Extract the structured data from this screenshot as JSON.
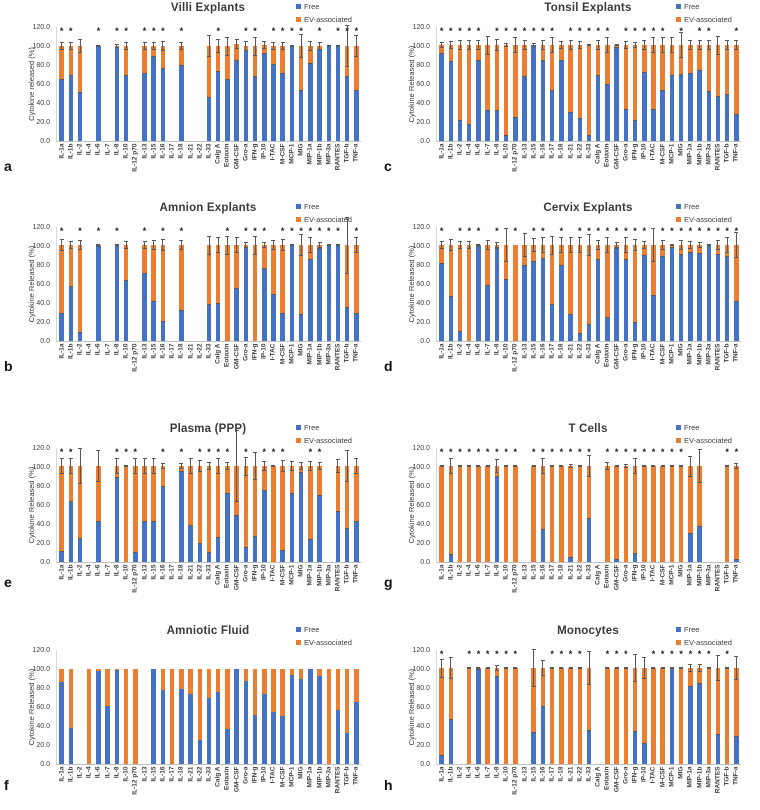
{
  "palette": {
    "free": "#4472C4",
    "ev": "#ED7D31",
    "error_bar": "#595959",
    "title_color": "#3b3b3b",
    "axis_text": "#404040"
  },
  "legend": {
    "free_label": "Free",
    "ev_label": "EV-associated"
  },
  "y_axis": {
    "ticks": [
      "120.0",
      "100.0",
      "80.0",
      "60.0",
      "40.0",
      "20.0",
      "0.0"
    ],
    "min": 0,
    "max": 120
  },
  "categories": [
    "IL-1a",
    "IL-1b",
    "IL-2",
    "IL-4",
    "IL-6",
    "IL-7",
    "IL-8",
    "IL-10",
    "IL-12 p70",
    "IL-13",
    "IL-15",
    "IL-16",
    "IL-17",
    "IL-18",
    "IL-21",
    "IL-22",
    "IL-33",
    "Calg A",
    "Eotaxin",
    "GM-CSF",
    "Gro-a",
    "IFN-g",
    "IP-10",
    "I-TAC",
    "M-CSF",
    "MCP-1",
    "MIG",
    "MIP-1a",
    "MIP-1b",
    "MIP-3a",
    "RANTES",
    "TGF-b",
    "TNF-a"
  ],
  "chart_data": [
    {
      "type": "bar",
      "panel_letter": "a",
      "title": "Villi Explants",
      "ylabel": "Cytokine released (%)",
      "series_note": "stacked: free (blue) bottom, ev-associated (orange) top; total = free+ev",
      "free": [
        65,
        70,
        52,
        0,
        100,
        0,
        99,
        69,
        0,
        72,
        90,
        77,
        0,
        80,
        0,
        0,
        46,
        74,
        65,
        85,
        96,
        68,
        93,
        81,
        72,
        100,
        54,
        82,
        97,
        100,
        100,
        68,
        54
      ],
      "total": [
        100,
        100,
        100,
        0,
        100,
        0,
        100,
        100,
        0,
        100,
        100,
        100,
        0,
        100,
        0,
        0,
        100,
        100,
        100,
        102,
        100,
        100,
        101,
        100,
        100,
        100,
        100,
        100,
        100,
        100,
        100,
        100,
        100
      ],
      "err": [
        4,
        4,
        7,
        0,
        1,
        0,
        2,
        4,
        0,
        4,
        4,
        5,
        0,
        4,
        0,
        0,
        12,
        7,
        10,
        5,
        5,
        10,
        4,
        4,
        4,
        1,
        13,
        5,
        4,
        1,
        1,
        22,
        12
      ],
      "asterisk": [
        1,
        1,
        0,
        0,
        1,
        0,
        1,
        1,
        0,
        1,
        1,
        1,
        0,
        1,
        0,
        0,
        0,
        1,
        0,
        0,
        1,
        1,
        0,
        1,
        1,
        1,
        1,
        0,
        1,
        0,
        1,
        1,
        1
      ]
    },
    {
      "type": "bar",
      "panel_letter": "b",
      "title": "Amnion Explants",
      "ylabel": "Cytokine Released (%)",
      "free": [
        29,
        58,
        10,
        0,
        100,
        0,
        101,
        64,
        0,
        72,
        42,
        21,
        0,
        33,
        0,
        0,
        39,
        40,
        0,
        56,
        99,
        0,
        77,
        49,
        29,
        101,
        28,
        86,
        98,
        101,
        101,
        36,
        30
      ],
      "total": [
        101,
        101,
        101,
        0,
        101,
        0,
        101,
        101,
        0,
        101,
        101,
        101,
        0,
        101,
        0,
        0,
        101,
        101,
        101,
        101,
        101,
        101,
        101,
        101,
        101,
        101,
        101,
        101,
        101,
        101,
        101,
        101,
        101
      ],
      "err": [
        6,
        4,
        5,
        0,
        1,
        0,
        1,
        4,
        0,
        4,
        5,
        6,
        0,
        5,
        0,
        0,
        10,
        8,
        10,
        8,
        3,
        10,
        3,
        5,
        6,
        1,
        12,
        8,
        3,
        1,
        1,
        30,
        8
      ],
      "asterisk": [
        1,
        0,
        1,
        0,
        1,
        0,
        1,
        0,
        0,
        1,
        0,
        1,
        0,
        1,
        0,
        0,
        0,
        0,
        1,
        0,
        1,
        1,
        1,
        0,
        1,
        1,
        1,
        1,
        1,
        1,
        1,
        0,
        1
      ]
    },
    {
      "type": "bar",
      "panel_letter": "c",
      "title": "Tonsil Explants",
      "ylabel": "Cytokine Released (%)",
      "free": [
        93,
        84,
        22,
        18,
        85,
        33,
        33,
        6,
        25,
        68,
        101,
        85,
        54,
        85,
        31,
        24,
        6,
        70,
        60,
        99,
        34,
        22,
        73,
        34,
        54,
        70,
        71,
        72,
        75,
        53,
        47,
        50,
        28
      ],
      "total": [
        101,
        101,
        101,
        101,
        101,
        101,
        101,
        101,
        101,
        101,
        101,
        101,
        101,
        101,
        101,
        101,
        101,
        101,
        101,
        101,
        101,
        101,
        101,
        101,
        101,
        101,
        101,
        101,
        101,
        101,
        101,
        101,
        101
      ],
      "err": [
        3,
        4,
        5,
        5,
        5,
        10,
        6,
        2,
        8,
        5,
        2,
        5,
        8,
        4,
        5,
        4,
        1,
        5,
        8,
        1,
        4,
        3,
        5,
        8,
        8,
        8,
        14,
        5,
        5,
        5,
        10,
        5,
        5
      ],
      "asterisk": [
        1,
        1,
        1,
        1,
        1,
        0,
        1,
        1,
        1,
        1,
        1,
        1,
        1,
        0,
        1,
        1,
        1,
        1,
        1,
        0,
        1,
        1,
        1,
        1,
        1,
        0,
        1,
        0,
        1,
        1,
        0,
        0,
        1
      ]
    },
    {
      "type": "bar",
      "panel_letter": "d",
      "title": "Cervix Explants",
      "ylabel": "Cytokine Released (%)",
      "free": [
        82,
        47,
        11,
        0,
        100,
        59,
        98,
        65,
        0,
        80,
        84,
        87,
        39,
        80,
        28,
        8,
        18,
        86,
        25,
        98,
        86,
        20,
        91,
        48,
        89,
        99,
        92,
        94,
        93,
        101,
        92,
        89,
        42
      ],
      "total": [
        101,
        101,
        101,
        101,
        101,
        101,
        101,
        101,
        101,
        101,
        101,
        101,
        101,
        101,
        101,
        101,
        101,
        101,
        101,
        101,
        101,
        101,
        101,
        101,
        101,
        101,
        101,
        101,
        101,
        101,
        101,
        101,
        101
      ],
      "err": [
        4,
        6,
        4,
        4,
        1,
        5,
        3,
        18,
        0,
        13,
        7,
        8,
        10,
        8,
        8,
        8,
        12,
        5,
        8,
        3,
        8,
        6,
        4,
        18,
        5,
        1,
        5,
        4,
        3,
        1,
        5,
        8,
        14
      ],
      "asterisk": [
        1,
        0,
        1,
        1,
        1,
        0,
        1,
        0,
        1,
        0,
        1,
        1,
        0,
        1,
        0,
        1,
        1,
        1,
        1,
        1,
        1,
        1,
        1,
        0,
        1,
        1,
        1,
        1,
        1,
        1,
        1,
        1,
        1
      ]
    },
    {
      "type": "bar",
      "panel_letter": "e",
      "title": "Plasma (PPP)",
      "ylabel": "Cytokine Released (%)",
      "free": [
        12,
        64,
        25,
        0,
        43,
        0,
        90,
        0,
        11,
        43,
        43,
        80,
        0,
        96,
        39,
        20,
        11,
        26,
        73,
        50,
        16,
        27,
        76,
        0,
        13,
        73,
        95,
        24,
        71,
        0,
        54,
        36,
        43
      ],
      "total": [
        101,
        101,
        101,
        0,
        101,
        0,
        101,
        101,
        101,
        101,
        101,
        101,
        0,
        101,
        101,
        101,
        101,
        101,
        101,
        101,
        101,
        101,
        101,
        101,
        101,
        101,
        101,
        101,
        101,
        0,
        101,
        101,
        101
      ],
      "err": [
        8,
        8,
        19,
        0,
        17,
        0,
        8,
        1,
        8,
        8,
        8,
        3,
        0,
        3,
        8,
        6,
        4,
        8,
        4,
        38,
        10,
        15,
        5,
        1,
        6,
        5,
        4,
        5,
        4,
        0,
        7,
        17,
        8
      ],
      "asterisk": [
        1,
        1,
        0,
        0,
        0,
        0,
        1,
        1,
        1,
        0,
        0,
        1,
        0,
        1,
        0,
        1,
        1,
        1,
        1,
        0,
        1,
        0,
        1,
        1,
        1,
        0,
        0,
        1,
        1,
        0,
        0,
        0,
        0
      ]
    },
    {
      "type": "bar",
      "panel_letter": "f",
      "title": "Amniotic Fluid",
      "ylabel": "Cytokine Released (%)",
      "free": [
        86,
        38,
        0,
        0,
        98,
        61,
        99,
        0,
        0,
        0,
        100,
        78,
        0,
        79,
        74,
        25,
        70,
        76,
        37,
        100,
        87,
        52,
        74,
        55,
        51,
        94,
        90,
        100,
        93,
        0,
        57,
        33,
        65
      ],
      "total": [
        100,
        100,
        0,
        100,
        100,
        100,
        100,
        100,
        100,
        0,
        100,
        100,
        100,
        100,
        100,
        100,
        100,
        100,
        100,
        100,
        100,
        100,
        100,
        100,
        100,
        100,
        100,
        100,
        100,
        100,
        100,
        100,
        100
      ],
      "err": [
        0,
        0,
        0,
        0,
        0,
        0,
        0,
        0,
        0,
        0,
        0,
        0,
        0,
        0,
        0,
        0,
        0,
        0,
        0,
        0,
        0,
        0,
        0,
        0,
        0,
        0,
        0,
        0,
        0,
        0,
        0,
        0,
        0
      ],
      "asterisk": [
        0,
        0,
        0,
        0,
        0,
        0,
        0,
        0,
        0,
        0,
        0,
        0,
        0,
        0,
        0,
        0,
        0,
        0,
        0,
        0,
        0,
        0,
        0,
        0,
        0,
        0,
        0,
        0,
        0,
        0,
        0,
        0,
        0
      ]
    },
    {
      "type": "bar",
      "panel_letter": "g",
      "title": "T Cells",
      "ylabel": "Cytokine Released (%)",
      "free": [
        0,
        8,
        0,
        0,
        0,
        0,
        91,
        0,
        0,
        0,
        0,
        35,
        0,
        0,
        5,
        0,
        46,
        0,
        0,
        3,
        0,
        9,
        0,
        0,
        0,
        0,
        0,
        31,
        38,
        0,
        0,
        0,
        3
      ],
      "total": [
        101,
        101,
        101,
        101,
        101,
        101,
        101,
        101,
        101,
        0,
        101,
        101,
        101,
        101,
        101,
        101,
        101,
        0,
        101,
        101,
        101,
        101,
        101,
        101,
        101,
        101,
        101,
        101,
        101,
        0,
        0,
        101,
        101
      ],
      "err": [
        1,
        8,
        1,
        1,
        1,
        1,
        7,
        1,
        1,
        0,
        1,
        8,
        1,
        1,
        2,
        1,
        12,
        0,
        4,
        1,
        2,
        8,
        1,
        1,
        1,
        1,
        1,
        11,
        18,
        0,
        0,
        1,
        3
      ],
      "asterisk": [
        1,
        1,
        1,
        1,
        1,
        1,
        1,
        1,
        1,
        0,
        1,
        1,
        1,
        1,
        1,
        1,
        1,
        0,
        1,
        1,
        1,
        1,
        1,
        1,
        1,
        1,
        1,
        0,
        0,
        0,
        0,
        1,
        1
      ]
    },
    {
      "type": "bar",
      "panel_letter": "h",
      "title": "Monocytes",
      "ylabel": "Cytokine Released (%)",
      "free": [
        10,
        47,
        0,
        0,
        100,
        0,
        93,
        0,
        0,
        0,
        34,
        61,
        0,
        0,
        0,
        0,
        36,
        0,
        0,
        0,
        0,
        35,
        22,
        0,
        0,
        101,
        0,
        82,
        85,
        0,
        32,
        0,
        29
      ],
      "total": [
        101,
        101,
        0,
        101,
        101,
        101,
        101,
        101,
        101,
        0,
        101,
        101,
        101,
        101,
        101,
        101,
        101,
        0,
        101,
        101,
        101,
        101,
        101,
        101,
        101,
        101,
        101,
        101,
        101,
        101,
        101,
        101,
        101
      ],
      "err": [
        10,
        12,
        0,
        1,
        1,
        1,
        3,
        1,
        1,
        0,
        20,
        8,
        1,
        1,
        1,
        1,
        18,
        0,
        1,
        1,
        1,
        15,
        12,
        1,
        1,
        1,
        1,
        4,
        4,
        1,
        14,
        1,
        13
      ],
      "asterisk": [
        1,
        0,
        0,
        1,
        1,
        1,
        1,
        1,
        1,
        0,
        0,
        0,
        1,
        1,
        1,
        1,
        0,
        0,
        1,
        1,
        1,
        0,
        0,
        1,
        1,
        1,
        1,
        1,
        1,
        1,
        0,
        1,
        0
      ]
    }
  ]
}
